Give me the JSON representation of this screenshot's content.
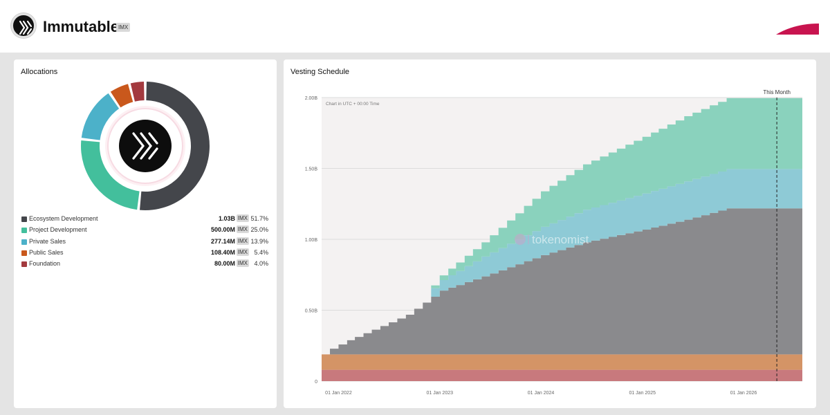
{
  "header": {
    "token_name": "Immutable",
    "token_symbol": "IMX",
    "logo_icon": "immutable-x-logo-icon",
    "brand_icon": "red-swoosh-icon"
  },
  "allocations": {
    "title": "Allocations",
    "unit": "IMX",
    "center_icon": "immutable-x-logo-icon"
  },
  "vesting": {
    "title": "Vesting Schedule",
    "note": "Chart in UTC + 00:00 Time",
    "marker_label": "This Month",
    "watermark": "tokenomist"
  },
  "chart_data": [
    {
      "type": "pie",
      "donut": true,
      "title": "Allocations",
      "categories": [
        "Ecosystem Development",
        "Project Development",
        "Private Sales",
        "Public Sales",
        "Foundation"
      ],
      "amounts": [
        "1.03B",
        "500.00M",
        "277.14M",
        "108.40M",
        "80.00M"
      ],
      "values": [
        51.7,
        25.0,
        13.9,
        5.4,
        4.0
      ],
      "percent_labels": [
        "51.7%",
        "25.0%",
        "13.9%",
        "5.4%",
        "4.0%"
      ],
      "colors": [
        "#44464b",
        "#43bf9c",
        "#4cb1c9",
        "#c9581c",
        "#a33a3f"
      ],
      "legend_position": "bottom"
    },
    {
      "type": "area",
      "stacked": true,
      "step": true,
      "title": "Vesting Schedule",
      "x_ticks": [
        "01 Jan 2022",
        "01 Jan 2023",
        "01 Jan 2024",
        "01 Jan 2025",
        "01 Jan 2026"
      ],
      "y_ticks": [
        "0",
        "0.50B",
        "1.00B",
        "1.50B",
        "2.00B"
      ],
      "ylim": [
        0,
        2000000000
      ],
      "x_range": [
        "2021-11-01",
        "2026-08-01"
      ],
      "marker_date": "2026-05-01",
      "grid": true,
      "series": [
        {
          "name": "Foundation",
          "color": "#c8797d",
          "points": [
            [
              "2021-11-01",
              80000000
            ],
            [
              "2026-08-01",
              80000000
            ]
          ]
        },
        {
          "name": "Public Sales",
          "color": "#d49466",
          "points": [
            [
              "2021-11-01",
              108400000
            ],
            [
              "2026-08-01",
              108400000
            ]
          ]
        },
        {
          "name": "Ecosystem Development",
          "color": "#8a8a8d",
          "points": [
            [
              "2021-11-01",
              0
            ],
            [
              "2021-12-01",
              40000000
            ],
            [
              "2022-02-01",
              100000000
            ],
            [
              "2022-06-01",
              200000000
            ],
            [
              "2022-09-01",
              280000000
            ],
            [
              "2023-01-01",
              450000000
            ],
            [
              "2023-06-01",
              550000000
            ],
            [
              "2024-01-01",
              700000000
            ],
            [
              "2024-06-01",
              790000000
            ],
            [
              "2025-01-01",
              880000000
            ],
            [
              "2025-06-01",
              950000000
            ],
            [
              "2025-11-01",
              1030000000
            ],
            [
              "2026-08-01",
              1030000000
            ]
          ]
        },
        {
          "name": "Private Sales",
          "color": "#8ecad6",
          "points": [
            [
              "2021-11-01",
              0
            ],
            [
              "2022-11-01",
              0
            ],
            [
              "2022-12-01",
              60000000
            ],
            [
              "2023-06-01",
              140000000
            ],
            [
              "2024-01-01",
              200000000
            ],
            [
              "2024-06-01",
              230000000
            ],
            [
              "2025-01-01",
              255000000
            ],
            [
              "2025-06-01",
              270000000
            ],
            [
              "2025-11-01",
              277140000
            ],
            [
              "2026-08-01",
              277140000
            ]
          ]
        },
        {
          "name": "Project Development",
          "color": "#8ad2bd",
          "points": [
            [
              "2021-11-01",
              0
            ],
            [
              "2022-11-01",
              0
            ],
            [
              "2022-12-01",
              20000000
            ],
            [
              "2023-06-01",
              100000000
            ],
            [
              "2024-01-01",
              250000000
            ],
            [
              "2024-06-01",
              320000000
            ],
            [
              "2025-01-01",
              400000000
            ],
            [
              "2025-06-01",
              460000000
            ],
            [
              "2025-11-01",
              500000000
            ],
            [
              "2026-08-01",
              500000000
            ]
          ]
        }
      ]
    }
  ]
}
